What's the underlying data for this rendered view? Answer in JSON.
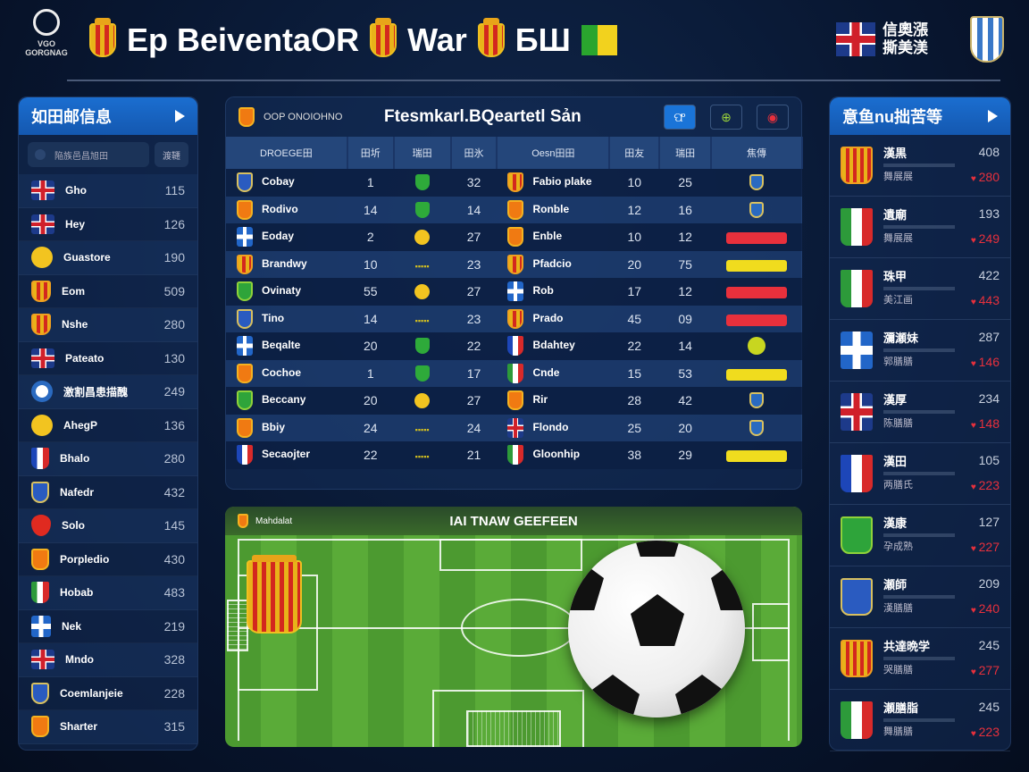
{
  "header": {
    "logo_text": "VGO GORGNAG",
    "title_1": "Ep BeiventaOR",
    "title_2": "War",
    "title_3": "БШ",
    "right_text_1": "信奧漲",
    "right_text_2": "撕美渼"
  },
  "left_panel": {
    "title": "如田邮信息",
    "search_placeholder": "陥族邑昌旭田",
    "search_button": "渡韆",
    "items": [
      {
        "name": "Gho",
        "value": "115",
        "icon": "uk"
      },
      {
        "name": "Hey",
        "value": "126",
        "icon": "uk"
      },
      {
        "name": "Guastore",
        "value": "190",
        "icon": "yel"
      },
      {
        "name": "Eom",
        "value": "509",
        "icon": "crestsm"
      },
      {
        "name": "Nshe",
        "value": "280",
        "icon": "crestsm"
      },
      {
        "name": "Pateato",
        "value": "130",
        "icon": "uk"
      },
      {
        "name": "激割昌患描醜",
        "value": "249",
        "icon": "ball"
      },
      {
        "name": "AhegP",
        "value": "136",
        "icon": "yel"
      },
      {
        "name": "Bhalo",
        "value": "280",
        "icon": "fr"
      },
      {
        "name": "Nafedr",
        "value": "432",
        "icon": "blue"
      },
      {
        "name": "Solo",
        "value": "145",
        "icon": "heart"
      },
      {
        "name": "Porpledio",
        "value": "430",
        "icon": "orange"
      },
      {
        "name": "Hobab",
        "value": "483",
        "icon": "it"
      },
      {
        "name": "Nek",
        "value": "219",
        "icon": "cross"
      },
      {
        "name": "Mndo",
        "value": "328",
        "icon": "uk"
      },
      {
        "name": "Coemlanjeie",
        "value": "228",
        "icon": "blue"
      },
      {
        "name": "Sharter",
        "value": "315",
        "icon": "orange"
      }
    ]
  },
  "center_panel": {
    "subtitle": "OOP ONOIOHNO",
    "title": "Ftesmkarl.BQeartetl Sản",
    "buttons": [
      "ଫ",
      "⊕",
      "◉"
    ],
    "columns": [
      "DROEGE田",
      "田圻",
      "瑞田",
      "田氷",
      "Oesn田田",
      "田友",
      "瑞田",
      "焦傳"
    ],
    "rows": [
      {
        "home": "Cobay",
        "home_icon": "blue",
        "a": "1",
        "mark": "green",
        "b": "32",
        "away": "Fabio plake",
        "away_icon": "crestsm",
        "c": "10",
        "d": "25",
        "status": "shield"
      },
      {
        "home": "Rodivo",
        "home_icon": "orange",
        "a": "14",
        "mark": "green",
        "b": "14",
        "away": "Ronble",
        "away_icon": "orange",
        "c": "12",
        "d": "16",
        "status": "shield"
      },
      {
        "home": "Eoday",
        "home_icon": "cross",
        "a": "2",
        "mark": "ycirc",
        "b": "27",
        "away": "Enble",
        "away_icon": "orange",
        "c": "10",
        "d": "12",
        "status": "red"
      },
      {
        "home": "Brandwy",
        "home_icon": "crestsm",
        "a": "10",
        "mark": "ytxt",
        "b": "23",
        "away": "Pfadcio",
        "away_icon": "crestsm",
        "c": "20",
        "d": "75",
        "status": "yel"
      },
      {
        "home": "Ovinaty",
        "home_icon": "green",
        "a": "55",
        "mark": "ycirc",
        "b": "27",
        "away": "Rob",
        "away_icon": "cross",
        "c": "17",
        "d": "12",
        "status": "red"
      },
      {
        "home": "Tino",
        "home_icon": "blue",
        "a": "14",
        "mark": "ytxt",
        "b": "23",
        "away": "Prado",
        "away_icon": "crestsm",
        "c": "45",
        "d": "09",
        "status": "red"
      },
      {
        "home": "Beqalte",
        "home_icon": "cross",
        "a": "20",
        "mark": "green",
        "b": "22",
        "away": "Bdahtey",
        "away_icon": "fr",
        "c": "22",
        "d": "14",
        "status": "ygshield"
      },
      {
        "home": "Cochoe",
        "home_icon": "orange",
        "a": "1",
        "mark": "green",
        "b": "17",
        "away": "Cnde",
        "away_icon": "it",
        "c": "15",
        "d": "53",
        "status": "yel"
      },
      {
        "home": "Beccany",
        "home_icon": "green",
        "a": "20",
        "mark": "ycirc",
        "b": "27",
        "away": "Rir",
        "away_icon": "orange",
        "c": "28",
        "d": "42",
        "status": "shield"
      },
      {
        "home": "Bbiy",
        "home_icon": "orange",
        "a": "24",
        "mark": "ytxt",
        "b": "24",
        "away": "Flondo",
        "away_icon": "uk",
        "c": "25",
        "d": "20",
        "status": "shield"
      },
      {
        "home": "Secaojter",
        "home_icon": "fr",
        "a": "22",
        "mark": "ytxt",
        "b": "21",
        "away": "Gloonhip",
        "away_icon": "it",
        "c": "38",
        "d": "29",
        "status": "yel"
      }
    ]
  },
  "pitch": {
    "label": "Mahdalat",
    "title": "IAI TNAW GEEFEEN"
  },
  "right_panel": {
    "title": "意鱼nu拙苦等",
    "items": [
      {
        "name": "漢黒",
        "sub": "舞展展",
        "value": "408",
        "likes": "280",
        "icon": "crestsm"
      },
      {
        "name": "遺廟",
        "sub": "舞展展",
        "value": "193",
        "likes": "249",
        "icon": "it"
      },
      {
        "name": "珠甲",
        "sub": "美江画",
        "value": "422",
        "likes": "443",
        "icon": "it"
      },
      {
        "name": "瀰瀬妹",
        "sub": "郭膳膳",
        "value": "287",
        "likes": "146",
        "icon": "cross"
      },
      {
        "name": "漢厚",
        "sub": "陈膳膳",
        "value": "234",
        "likes": "148",
        "icon": "uk"
      },
      {
        "name": "漢田",
        "sub": "两膳氏",
        "value": "105",
        "likes": "223",
        "icon": "fr"
      },
      {
        "name": "漢康",
        "sub": "孕成熟",
        "value": "127",
        "likes": "227",
        "icon": "green"
      },
      {
        "name": "瀬師",
        "sub": "漢膳膳",
        "value": "209",
        "likes": "240",
        "icon": "blue"
      },
      {
        "name": "共達晩学",
        "sub": "哭膳膳",
        "value": "245",
        "likes": "277",
        "icon": "crestsm"
      },
      {
        "name": "瀬膳脂",
        "sub": "舞膳膳",
        "value": "245",
        "likes": "223",
        "icon": "it"
      }
    ]
  }
}
